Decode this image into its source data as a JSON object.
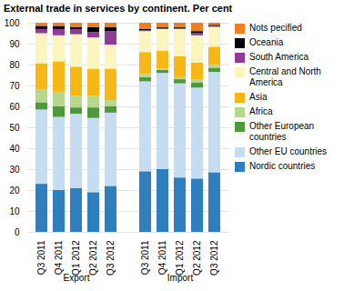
{
  "chart_data": {
    "type": "bar",
    "title": "External trade in services by continent. Per cent",
    "stacked": true,
    "grid": true,
    "legend": "right",
    "categories": [
      "Q3 2011",
      "Q4 2011",
      "Q1 2012",
      "Q2 2012",
      "Q3 2012",
      null,
      "Q3 2011",
      "Q4 2011",
      "Q1 2012",
      "Q2 2012",
      "Q3 2012"
    ],
    "groups": [
      "Export",
      "Export",
      "Export",
      "Export",
      "Export",
      null,
      "Import",
      "Import",
      "Import",
      "Import",
      "Import"
    ],
    "ylim": [
      0,
      100
    ],
    "yticks": [
      0,
      10,
      20,
      30,
      40,
      50,
      60,
      70,
      80,
      90,
      100
    ],
    "series": [
      {
        "name": "Nordic countries",
        "color": "#2f7fbf",
        "values": [
          23,
          20,
          21,
          19,
          22,
          null,
          29,
          30,
          26,
          25.5,
          28.5
        ]
      },
      {
        "name": "Other EU countries",
        "color": "#c6dcf0",
        "values": [
          35.5,
          35,
          35.5,
          35.5,
          35,
          null,
          43,
          46,
          45,
          43.5,
          48
        ]
      },
      {
        "name": "Other European countries",
        "color": "#4e9a3a",
        "values": [
          3.5,
          5,
          3,
          5,
          3,
          null,
          2,
          1.5,
          2,
          2.5,
          2
        ]
      },
      {
        "name": "Africa",
        "color": "#b5d88c",
        "values": [
          6,
          7,
          5.5,
          5.5,
          3,
          null,
          1.5,
          0.5,
          1,
          1.5,
          1.5
        ]
      },
      {
        "name": "Asia",
        "color": "#f7b715",
        "values": [
          12.5,
          14.5,
          14,
          13,
          15,
          null,
          10.5,
          8.5,
          10,
          8,
          8.5
        ]
      },
      {
        "name": "Central and North America",
        "color": "#fdf5c0",
        "values": [
          14.5,
          12.5,
          15.5,
          15,
          11.5,
          null,
          10,
          10.5,
          13,
          13,
          9.5
        ]
      },
      {
        "name": "South America",
        "color": "#8e3c96",
        "values": [
          2,
          3,
          2.5,
          2.5,
          6.5,
          null,
          0.5,
          0.5,
          0.5,
          1,
          0.5
        ]
      },
      {
        "name": "Oceania",
        "color": "#000000",
        "values": [
          1.5,
          1.5,
          1,
          2.5,
          2,
          null,
          0.5,
          0.5,
          0.5,
          1,
          0.5
        ]
      },
      {
        "name": "Nots pecified",
        "color": "#f07f21",
        "values": [
          1.5,
          1.5,
          2,
          2,
          2,
          null,
          3,
          2,
          2,
          4,
          1
        ]
      }
    ]
  }
}
